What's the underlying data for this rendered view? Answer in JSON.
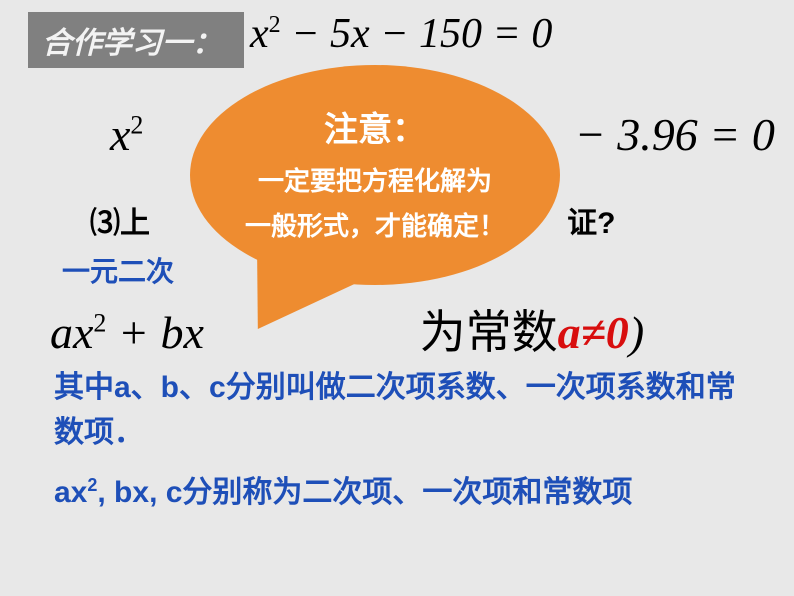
{
  "tag": "合作学习一：",
  "eq1": {
    "pre": "x",
    "sup": "2",
    "rest": " − 5x − 150 = 0"
  },
  "eq2": {
    "pre": "x",
    "sup": "2",
    "rest_left": "",
    "rest_right": "− 3.96 = 0"
  },
  "q3": "⑶上",
  "q3_tail": "证?",
  "line_a": "一元二次",
  "formula": {
    "pre": "ax",
    "sup": "2",
    "mid": " + bx",
    "cn": "为常数",
    "red": "a≠0",
    "close": ")"
  },
  "bubble": {
    "title": "注意：",
    "line1": "一定要把方程化解为",
    "line2": "一般形式，才能确定！"
  },
  "blue1": "其中a、b、c分别叫做二次项系数、一次项系数和常数项．",
  "blue2_pre": "ax",
  "blue2_sup": "2",
  "blue2_rest": ", bx, c分别称为二次项、一次项和常数项"
}
